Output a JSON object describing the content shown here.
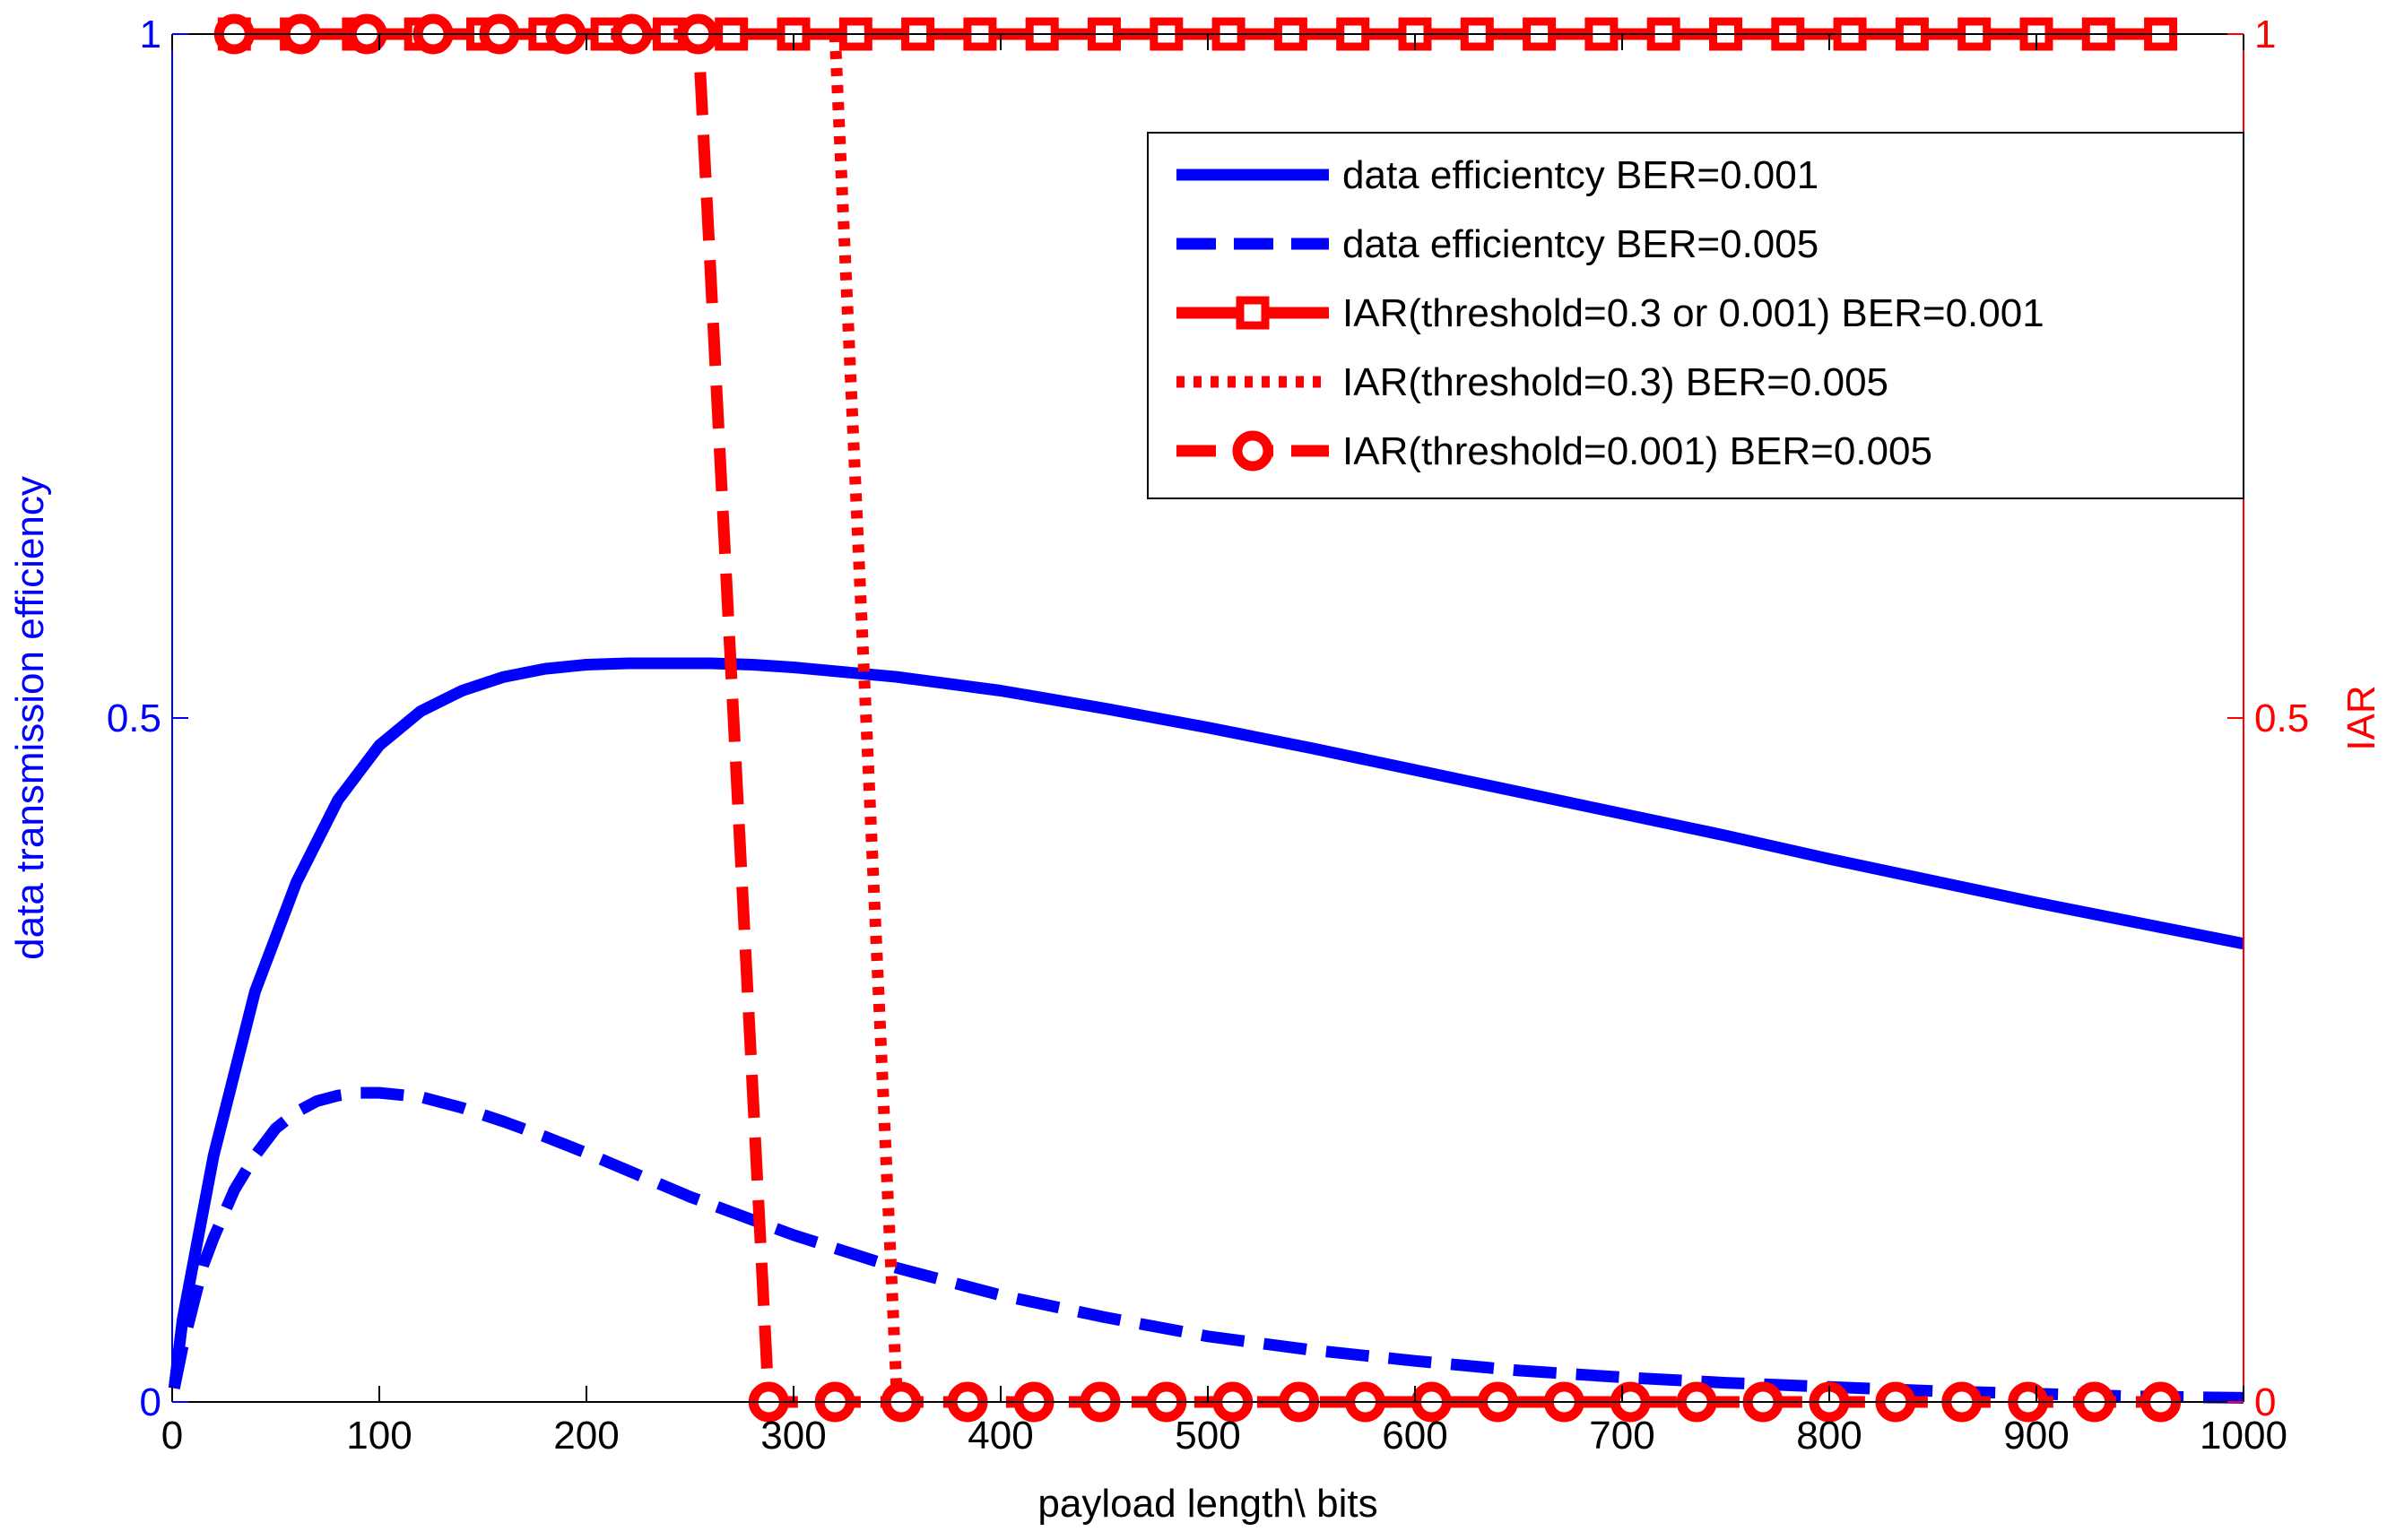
{
  "chart_data": {
    "type": "line",
    "title": "",
    "xlabel": "payload length\\ bits",
    "ylabel_left": "data transmission efficiency",
    "ylabel_right": "IAR",
    "xlim": [
      0,
      1000
    ],
    "ylim_left": [
      0,
      1
    ],
    "ylim_right": [
      0,
      1
    ],
    "xticks": [
      "0",
      "100",
      "200",
      "300",
      "400",
      "500",
      "600",
      "700",
      "800",
      "900",
      "1000"
    ],
    "yticks_left": [
      "0",
      "0.5",
      "1"
    ],
    "yticks_right": [
      "0",
      "0.5",
      "1"
    ],
    "grid": false,
    "legend_position": "top-right",
    "colors": {
      "left_axis": "#0000ff",
      "right_axis": "#ff0000",
      "frame": "#000000"
    },
    "series": [
      {
        "name": "data efficientcy BER=0.001",
        "axis": "left",
        "color": "#0000ff",
        "style": "solid",
        "marker": "none",
        "x": [
          1,
          5,
          10,
          20,
          30,
          40,
          50,
          60,
          70,
          80,
          90,
          100,
          120,
          140,
          160,
          180,
          200,
          220,
          240,
          260,
          280,
          300,
          350,
          400,
          450,
          500,
          550,
          600,
          650,
          700,
          750,
          800,
          850,
          900,
          950,
          1000
        ],
        "y": [
          0.01,
          0.06,
          0.1,
          0.18,
          0.24,
          0.3,
          0.34,
          0.38,
          0.41,
          0.44,
          0.46,
          0.48,
          0.505,
          0.52,
          0.53,
          0.536,
          0.539,
          0.54,
          0.54,
          0.54,
          0.539,
          0.537,
          0.53,
          0.52,
          0.507,
          0.493,
          0.478,
          0.462,
          0.446,
          0.43,
          0.414,
          0.397,
          0.381,
          0.365,
          0.35,
          0.335
        ]
      },
      {
        "name": "data efficientcy BER=0.005",
        "axis": "left",
        "color": "#0000ff",
        "style": "dashed",
        "marker": "none",
        "x": [
          1,
          5,
          10,
          15,
          20,
          30,
          40,
          50,
          60,
          70,
          80,
          90,
          100,
          120,
          140,
          160,
          180,
          200,
          250,
          300,
          350,
          400,
          450,
          500,
          550,
          600,
          650,
          700,
          750,
          800,
          850,
          900,
          950,
          1000
        ],
        "y": [
          0.01,
          0.04,
          0.07,
          0.1,
          0.12,
          0.155,
          0.18,
          0.2,
          0.212,
          0.22,
          0.224,
          0.226,
          0.226,
          0.223,
          0.215,
          0.205,
          0.194,
          0.182,
          0.15,
          0.122,
          0.098,
          0.078,
          0.062,
          0.048,
          0.038,
          0.03,
          0.023,
          0.018,
          0.014,
          0.011,
          0.008,
          0.006,
          0.004,
          0.003
        ]
      },
      {
        "name": "IAR(threshold=0.3 or 0.001)  BER=0.001",
        "axis": "right",
        "color": "#ff0000",
        "style": "solid",
        "marker": "square",
        "x": [
          30,
          60,
          90,
          120,
          150,
          180,
          210,
          240,
          270,
          300,
          330,
          360,
          390,
          420,
          450,
          480,
          510,
          540,
          570,
          600,
          630,
          660,
          690,
          720,
          750,
          780,
          810,
          840,
          870,
          900,
          930,
          960
        ],
        "y": [
          1,
          1,
          1,
          1,
          1,
          1,
          1,
          1,
          1,
          1,
          1,
          1,
          1,
          1,
          1,
          1,
          1,
          1,
          1,
          1,
          1,
          1,
          1,
          1,
          1,
          1,
          1,
          1,
          1,
          1,
          1,
          1
        ]
      },
      {
        "name": "IAR(threshold=0.3) BER=0.005",
        "axis": "right",
        "color": "#ff0000",
        "style": "dotted",
        "marker": "none",
        "x": [
          320,
          350
        ],
        "y": [
          1,
          0
        ]
      },
      {
        "name": "IAR(threshold=0.001) BER=0.005",
        "axis": "right",
        "color": "#ff0000",
        "style": "dashed",
        "marker": "circle",
        "x": [
          30,
          62,
          94,
          126,
          158,
          190,
          222,
          254,
          288,
          320,
          352,
          384,
          416,
          448,
          480,
          512,
          544,
          576,
          608,
          640,
          672,
          704,
          736,
          768,
          800,
          832,
          864,
          896,
          928,
          960
        ],
        "y": [
          1,
          1,
          1,
          1,
          1,
          1,
          1,
          1,
          0,
          0,
          0,
          0,
          0,
          0,
          0,
          0,
          0,
          0,
          0,
          0,
          0,
          0,
          0,
          0,
          0,
          0,
          0,
          0,
          0,
          0
        ]
      }
    ]
  }
}
